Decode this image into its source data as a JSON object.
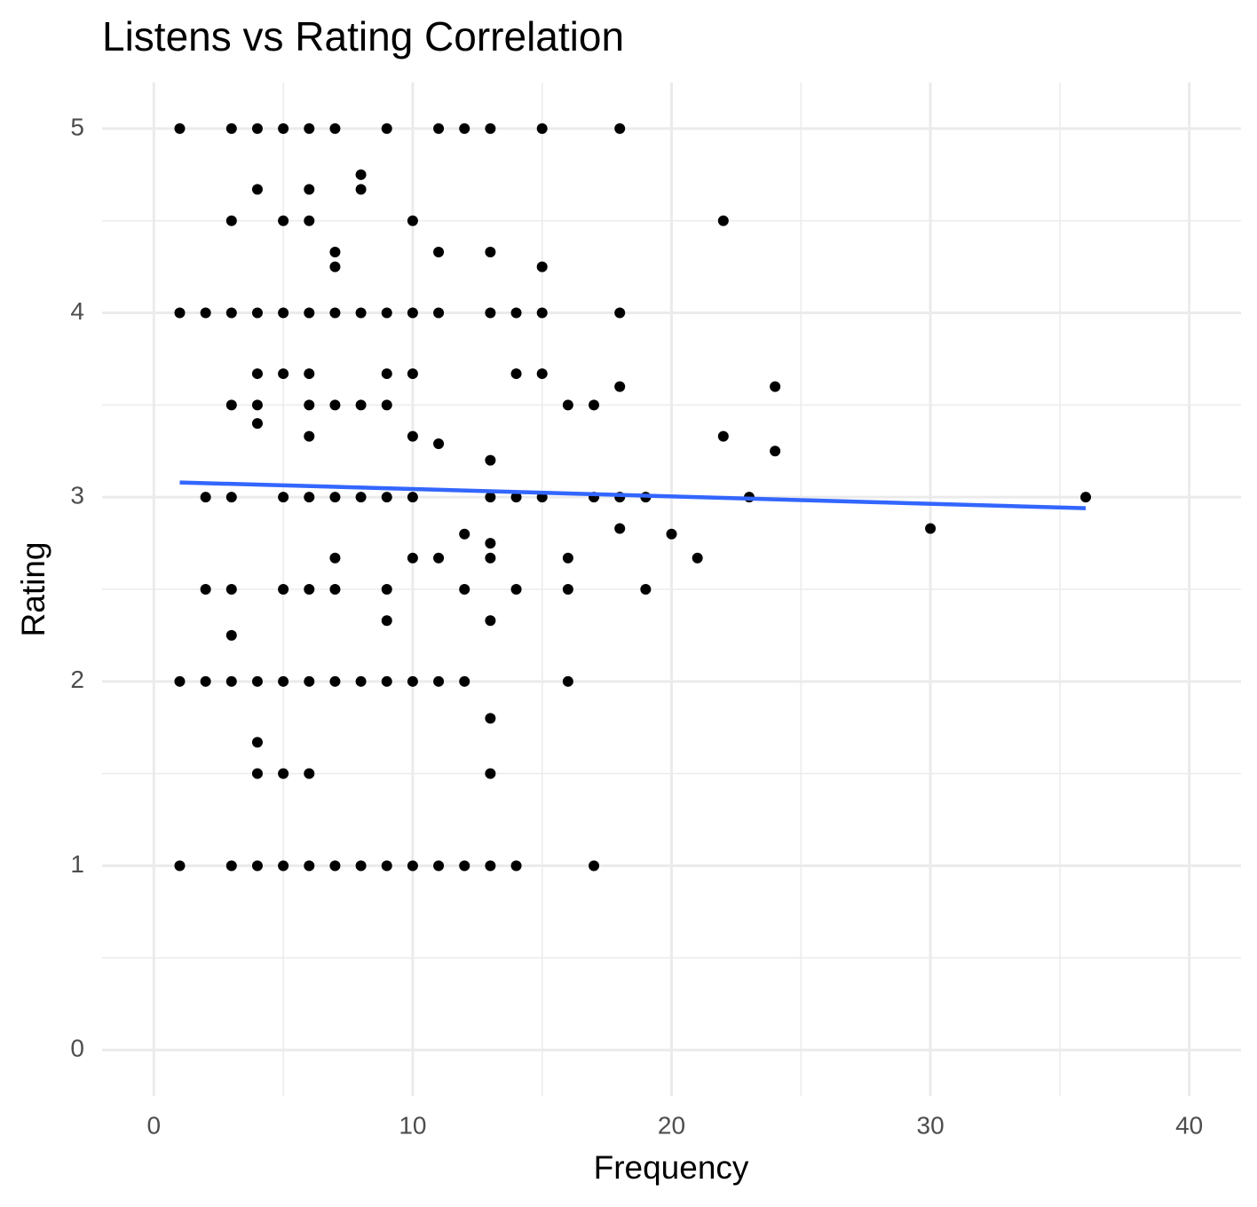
{
  "chart_data": {
    "type": "scatter",
    "title": "Listens vs Rating Correlation",
    "x_label": "Frequency",
    "y_label": "Rating",
    "xlim": [
      -2,
      42
    ],
    "ylim": [
      -0.25,
      5.25
    ],
    "xticks": [
      0,
      10,
      20,
      30,
      40
    ],
    "yticks": [
      0,
      1,
      2,
      3,
      4,
      5
    ],
    "xminorticks": [
      5,
      15,
      25,
      35
    ],
    "yminorticks": [
      0.5,
      1.5,
      2.5,
      3.5,
      4.5
    ],
    "grid": true,
    "color": "#000000",
    "x": [
      1,
      3,
      4,
      5,
      6,
      7,
      9,
      11,
      12,
      13,
      15,
      18,
      8,
      4,
      6,
      8,
      3,
      5,
      6,
      10,
      22,
      7,
      11,
      13,
      7,
      15,
      1,
      2,
      3,
      4,
      5,
      6,
      7,
      8,
      9,
      10,
      11,
      13,
      14,
      15,
      18,
      4,
      5,
      6,
      9,
      10,
      14,
      15,
      18,
      24,
      3,
      4,
      6,
      7,
      8,
      9,
      16,
      17,
      4,
      6,
      10,
      22,
      11,
      24,
      13,
      2,
      3,
      5,
      6,
      7,
      8,
      9,
      10,
      13,
      14,
      15,
      17,
      18,
      19,
      23,
      36,
      18,
      30,
      12,
      20,
      13,
      7,
      10,
      11,
      13,
      16,
      21,
      2,
      3,
      5,
      6,
      7,
      9,
      12,
      14,
      16,
      19,
      9,
      13,
      3,
      1,
      2,
      3,
      4,
      5,
      6,
      7,
      8,
      9,
      10,
      11,
      12,
      16,
      13,
      4,
      4,
      5,
      6,
      13,
      1,
      3,
      4,
      5,
      6,
      7,
      8,
      9,
      10,
      11,
      12,
      13,
      14,
      17
    ],
    "y": [
      5,
      5,
      5,
      5,
      5,
      5,
      5,
      5,
      5,
      5,
      5,
      5,
      4.75,
      4.67,
      4.67,
      4.67,
      4.5,
      4.5,
      4.5,
      4.5,
      4.5,
      4.33,
      4.33,
      4.33,
      4.25,
      4.25,
      4,
      4,
      4,
      4,
      4,
      4,
      4,
      4,
      4,
      4,
      4,
      4,
      4,
      4,
      4,
      3.67,
      3.67,
      3.67,
      3.67,
      3.67,
      3.67,
      3.67,
      3.6,
      3.6,
      3.5,
      3.5,
      3.5,
      3.5,
      3.5,
      3.5,
      3.5,
      3.5,
      3.4,
      3.33,
      3.33,
      3.33,
      3.29,
      3.25,
      3.2,
      3,
      3,
      3,
      3,
      3,
      3,
      3,
      3,
      3,
      3,
      3,
      3,
      3,
      3,
      3,
      3,
      2.83,
      2.83,
      2.8,
      2.8,
      2.75,
      2.67,
      2.67,
      2.67,
      2.67,
      2.67,
      2.67,
      2.5,
      2.5,
      2.5,
      2.5,
      2.5,
      2.5,
      2.5,
      2.5,
      2.5,
      2.5,
      2.33,
      2.33,
      2.25,
      2,
      2,
      2,
      2,
      2,
      2,
      2,
      2,
      2,
      2,
      2,
      2,
      2,
      1.8,
      1.67,
      1.5,
      1.5,
      1.5,
      1.5,
      1,
      1,
      1,
      1,
      1,
      1,
      1,
      1,
      1,
      1,
      1,
      1,
      1,
      1
    ],
    "trend": {
      "x": [
        1,
        36
      ],
      "y": [
        3.08,
        2.94
      ],
      "color": "#3366ff"
    }
  }
}
